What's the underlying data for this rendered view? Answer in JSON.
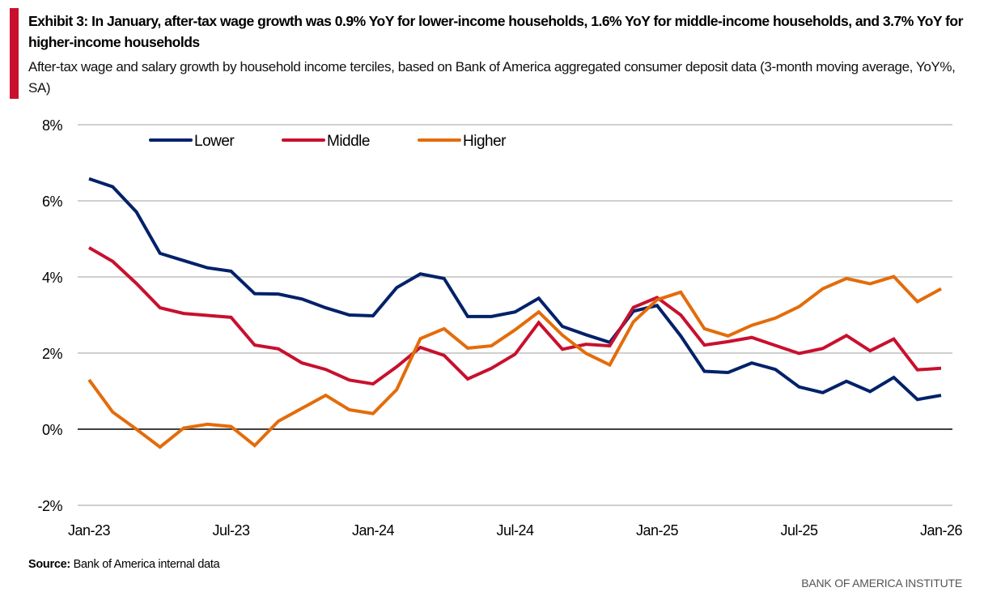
{
  "header": {
    "title": "Exhibit 3: In January, after-tax wage growth was 0.9% YoY for lower-income households, 1.6% YoY for middle-income households, and 3.7% YoY for higher-income households",
    "subtitle": "After-tax wage and salary growth by household income terciles, based on Bank of America aggregated consumer deposit data (3-month moving average, YoY%, SA)"
  },
  "footer": {
    "source_label": "Source:",
    "source_text": "Bank of America internal data",
    "brand": "BANK OF AMERICA INSTITUTE"
  },
  "colors": {
    "accent": "#c8102e",
    "lower": "#012169",
    "middle": "#c8102e",
    "higher": "#e36c0a",
    "grid": "#bfbfbf",
    "zero_line": "#404040"
  },
  "chart_data": {
    "type": "line",
    "title": "",
    "xlabel": "",
    "ylabel": "",
    "ylim": [
      -2,
      8
    ],
    "yticks": [
      -2,
      0,
      2,
      4,
      6,
      8
    ],
    "ytick_labels": [
      "-2%",
      "0%",
      "2%",
      "4%",
      "6%",
      "8%"
    ],
    "grid": true,
    "legend_position": "top-left",
    "x": [
      "Jan-23",
      "Feb-23",
      "Mar-23",
      "Apr-23",
      "May-23",
      "Jun-23",
      "Jul-23",
      "Aug-23",
      "Sep-23",
      "Oct-23",
      "Nov-23",
      "Dec-23",
      "Jan-24",
      "Feb-24",
      "Mar-24",
      "Apr-24",
      "May-24",
      "Jun-24",
      "Jul-24",
      "Aug-24",
      "Sep-24",
      "Oct-24",
      "Nov-24",
      "Dec-24",
      "Jan-25",
      "Feb-25",
      "Mar-25",
      "Apr-25",
      "May-25",
      "Jun-25",
      "Jul-25",
      "Aug-25",
      "Sep-25",
      "Oct-25",
      "Nov-25",
      "Dec-25",
      "Jan-26"
    ],
    "xtick_labels": [
      "Jan-23",
      "Jul-23",
      "Jan-24",
      "Jul-24",
      "Jan-25",
      "Jul-25",
      "Jan-26"
    ],
    "xtick_indices": [
      0,
      6,
      12,
      18,
      24,
      30,
      36
    ],
    "series": [
      {
        "name": "Lower",
        "color_key": "lower",
        "values": [
          6.58,
          6.37,
          5.71,
          4.62,
          4.43,
          4.24,
          4.15,
          3.56,
          3.55,
          3.42,
          3.19,
          3.0,
          2.98,
          3.72,
          4.08,
          3.96,
          2.96,
          2.96,
          3.08,
          3.44,
          2.7,
          2.48,
          2.28,
          3.1,
          3.25,
          2.45,
          1.52,
          1.49,
          1.74,
          1.57,
          1.11,
          0.96,
          1.26,
          0.99,
          1.36,
          0.78,
          0.89
        ]
      },
      {
        "name": "Middle",
        "color_key": "middle",
        "values": [
          4.77,
          4.41,
          3.83,
          3.19,
          3.04,
          2.99,
          2.94,
          2.21,
          2.11,
          1.74,
          1.57,
          1.29,
          1.19,
          1.64,
          2.15,
          1.94,
          1.32,
          1.6,
          1.97,
          2.8,
          2.1,
          2.23,
          2.19,
          3.2,
          3.46,
          3.0,
          2.21,
          2.3,
          2.41,
          2.2,
          1.99,
          2.12,
          2.46,
          2.06,
          2.37,
          1.56,
          1.6
        ]
      },
      {
        "name": "Higher",
        "color_key": "higher",
        "values": [
          1.3,
          0.45,
          0.0,
          -0.47,
          0.03,
          0.13,
          0.07,
          -0.43,
          0.21,
          0.55,
          0.89,
          0.51,
          0.41,
          1.04,
          2.38,
          2.64,
          2.13,
          2.19,
          2.61,
          3.08,
          2.47,
          1.99,
          1.69,
          2.82,
          3.4,
          3.6,
          2.64,
          2.45,
          2.73,
          2.92,
          3.22,
          3.69,
          3.96,
          3.82,
          4.01,
          3.35,
          3.69
        ]
      }
    ]
  }
}
